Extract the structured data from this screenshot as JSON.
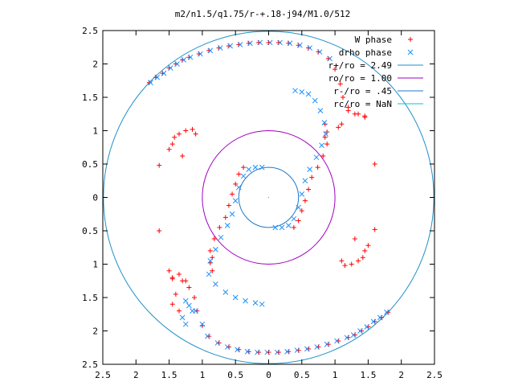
{
  "chart_data": {
    "type": "scatter",
    "title": "m2/n1.5/q1.75/r-+.18-j94/M1.0/512",
    "xlabel": "",
    "ylabel": "",
    "xlim": [
      -2.5,
      2.5
    ],
    "ylim": [
      -2.5,
      2.5
    ],
    "x_ticks": [
      -2.5,
      -2,
      -1.5,
      -1,
      -0.5,
      0,
      0.5,
      1,
      1.5,
      2,
      2.5
    ],
    "y_ticks": [
      2.5,
      2,
      1.5,
      1,
      0.5,
      0,
      -0.5,
      -1,
      -1.5,
      -2,
      -2.5
    ],
    "x_tick_labels": [
      "2.5",
      "2",
      "1.5",
      "1",
      "0.5",
      "0",
      "0.5",
      "1",
      "1.5",
      "2",
      "2.5"
    ],
    "y_tick_labels": [
      "2.5",
      "2",
      "1.5",
      "1",
      "0.5",
      "0",
      "0.5",
      "1",
      "1.5",
      "2",
      "2.5"
    ],
    "grid": false,
    "legend_position": "top-right",
    "legend": [
      {
        "label": "W phase",
        "kind": "marker",
        "symbol": "+",
        "color": "#ff0000"
      },
      {
        "label": "drho phase",
        "kind": "marker",
        "symbol": "x",
        "color": "#1e90ff"
      },
      {
        "label": "r+/ro = 2.49",
        "kind": "line",
        "color": "#1e90c8"
      },
      {
        "label": "ro/ro = 1.00",
        "kind": "line",
        "color": "#a000c0"
      },
      {
        "label": "r-/ro = .45",
        "kind": "line",
        "color": "#1e78c8"
      },
      {
        "label": "rc/ro = NaN",
        "kind": "line",
        "color": "#00c8c8"
      }
    ],
    "circles": [
      {
        "name": "r+/ro = 2.49",
        "r": 2.49,
        "color": "#1e90c8"
      },
      {
        "name": "ro/ro = 1.00",
        "r": 1.0,
        "color": "#a000c0"
      },
      {
        "name": "r-/ro = .45",
        "r": 0.45,
        "color": "#1e78c8"
      }
    ],
    "series": [
      {
        "name": "W phase",
        "color": "#ff0000",
        "marker": "+",
        "points": [
          [
            -1.8,
            1.72
          ],
          [
            -1.7,
            1.8
          ],
          [
            -1.6,
            1.86
          ],
          [
            -1.5,
            1.94
          ],
          [
            -1.4,
            2.0
          ],
          [
            -1.3,
            2.06
          ],
          [
            -1.2,
            2.1
          ],
          [
            -1.05,
            2.15
          ],
          [
            -0.9,
            2.2
          ],
          [
            -0.75,
            2.24
          ],
          [
            -0.6,
            2.27
          ],
          [
            -0.45,
            2.29
          ],
          [
            -0.3,
            2.31
          ],
          [
            -0.15,
            2.32
          ],
          [
            0.0,
            2.32
          ],
          [
            0.15,
            2.32
          ],
          [
            0.3,
            2.31
          ],
          [
            0.45,
            2.28
          ],
          [
            0.6,
            2.24
          ],
          [
            0.75,
            2.18
          ],
          [
            0.9,
            2.08
          ],
          [
            1.0,
            1.92
          ],
          [
            1.08,
            1.7
          ],
          [
            1.12,
            1.5
          ],
          [
            1.2,
            1.35
          ],
          [
            1.3,
            1.25
          ],
          [
            1.45,
            1.22
          ],
          [
            0.85,
            1.1
          ],
          [
            0.88,
            0.98
          ],
          [
            0.85,
            0.9
          ],
          [
            0.88,
            0.8
          ],
          [
            0.82,
            0.62
          ],
          [
            0.74,
            0.45
          ],
          [
            0.65,
            0.3
          ],
          [
            0.6,
            0.12
          ],
          [
            0.55,
            -0.05
          ],
          [
            0.5,
            -0.2
          ],
          [
            0.45,
            -0.35
          ],
          [
            0.38,
            -0.45
          ],
          [
            1.8,
            -1.72
          ],
          [
            1.7,
            -1.8
          ],
          [
            1.6,
            -1.86
          ],
          [
            1.5,
            -1.94
          ],
          [
            1.4,
            -2.0
          ],
          [
            1.3,
            -2.06
          ],
          [
            1.2,
            -2.1
          ],
          [
            1.05,
            -2.15
          ],
          [
            0.9,
            -2.2
          ],
          [
            0.75,
            -2.24
          ],
          [
            0.6,
            -2.27
          ],
          [
            0.45,
            -2.29
          ],
          [
            0.3,
            -2.31
          ],
          [
            0.15,
            -2.32
          ],
          [
            0.0,
            -2.32
          ],
          [
            -0.15,
            -2.32
          ],
          [
            -0.3,
            -2.31
          ],
          [
            -0.45,
            -2.28
          ],
          [
            -0.6,
            -2.24
          ],
          [
            -0.75,
            -2.18
          ],
          [
            -0.9,
            -2.08
          ],
          [
            -1.0,
            -1.92
          ],
          [
            -1.08,
            -1.7
          ],
          [
            -1.12,
            -1.5
          ],
          [
            -1.2,
            -1.35
          ],
          [
            -1.3,
            -1.25
          ],
          [
            -1.45,
            -1.22
          ],
          [
            -0.85,
            -1.1
          ],
          [
            -0.88,
            -0.98
          ],
          [
            -0.85,
            -0.9
          ],
          [
            -0.88,
            -0.8
          ],
          [
            -0.82,
            -0.62
          ],
          [
            -0.74,
            -0.45
          ],
          [
            -0.65,
            -0.3
          ],
          [
            -0.6,
            -0.12
          ],
          [
            -0.55,
            0.05
          ],
          [
            -0.5,
            0.2
          ],
          [
            -0.45,
            0.35
          ],
          [
            -0.38,
            0.45
          ],
          [
            -1.42,
            0.9
          ],
          [
            -1.35,
            0.95
          ],
          [
            -1.25,
            1.0
          ],
          [
            -1.15,
            1.02
          ],
          [
            -1.1,
            0.95
          ],
          [
            -1.45,
            0.8
          ],
          [
            -1.5,
            0.72
          ],
          [
            -1.3,
            0.62
          ],
          [
            -1.65,
            0.48
          ],
          [
            -1.65,
            -0.5
          ],
          [
            1.42,
            -0.9
          ],
          [
            1.35,
            -0.95
          ],
          [
            1.25,
            -1.0
          ],
          [
            1.15,
            -1.02
          ],
          [
            1.1,
            -0.95
          ],
          [
            1.45,
            -0.8
          ],
          [
            1.5,
            -0.72
          ],
          [
            1.3,
            -0.62
          ],
          [
            1.6,
            0.5
          ],
          [
            1.6,
            -0.48
          ],
          [
            -1.45,
            -1.2
          ],
          [
            -1.35,
            -1.15
          ],
          [
            -1.25,
            -1.25
          ],
          [
            -1.5,
            -1.1
          ],
          [
            -1.4,
            -1.45
          ],
          [
            -1.45,
            -1.6
          ],
          [
            -1.35,
            -1.7
          ],
          [
            1.2,
            1.3
          ],
          [
            1.35,
            1.25
          ],
          [
            1.45,
            1.2
          ],
          [
            1.05,
            1.05
          ],
          [
            1.1,
            1.1
          ]
        ]
      },
      {
        "name": "drho phase",
        "color": "#1e90ff",
        "marker": "x",
        "points": [
          [
            -1.78,
            1.72
          ],
          [
            -1.68,
            1.8
          ],
          [
            -1.58,
            1.86
          ],
          [
            -1.48,
            1.94
          ],
          [
            -1.38,
            2.0
          ],
          [
            -1.28,
            2.06
          ],
          [
            -1.18,
            2.1
          ],
          [
            -1.03,
            2.15
          ],
          [
            -0.88,
            2.2
          ],
          [
            -0.73,
            2.24
          ],
          [
            -0.58,
            2.27
          ],
          [
            -0.43,
            2.29
          ],
          [
            -0.28,
            2.31
          ],
          [
            -0.13,
            2.32
          ],
          [
            0.02,
            2.32
          ],
          [
            0.17,
            2.32
          ],
          [
            0.32,
            2.31
          ],
          [
            0.47,
            2.28
          ],
          [
            0.62,
            2.24
          ],
          [
            0.77,
            2.18
          ],
          [
            0.92,
            2.08
          ],
          [
            0.4,
            1.6
          ],
          [
            0.5,
            1.58
          ],
          [
            0.6,
            1.55
          ],
          [
            0.7,
            1.45
          ],
          [
            0.78,
            1.3
          ],
          [
            0.84,
            1.12
          ],
          [
            0.86,
            0.95
          ],
          [
            0.8,
            0.78
          ],
          [
            0.72,
            0.6
          ],
          [
            0.62,
            0.42
          ],
          [
            0.55,
            0.25
          ],
          [
            0.5,
            0.05
          ],
          [
            0.45,
            -0.15
          ],
          [
            0.38,
            -0.32
          ],
          [
            0.3,
            -0.42
          ],
          [
            0.2,
            -0.45
          ],
          [
            0.1,
            -0.45
          ],
          [
            1.78,
            -1.72
          ],
          [
            1.68,
            -1.8
          ],
          [
            1.58,
            -1.86
          ],
          [
            1.48,
            -1.94
          ],
          [
            1.38,
            -2.0
          ],
          [
            1.28,
            -2.06
          ],
          [
            1.18,
            -2.1
          ],
          [
            1.03,
            -2.15
          ],
          [
            0.88,
            -2.2
          ],
          [
            0.73,
            -2.24
          ],
          [
            0.58,
            -2.27
          ],
          [
            0.43,
            -2.29
          ],
          [
            0.28,
            -2.31
          ],
          [
            0.13,
            -2.32
          ],
          [
            -0.02,
            -2.32
          ],
          [
            -0.17,
            -2.32
          ],
          [
            -0.32,
            -2.31
          ],
          [
            -0.47,
            -2.28
          ],
          [
            -0.62,
            -2.24
          ],
          [
            -0.77,
            -2.18
          ],
          [
            -0.92,
            -2.08
          ],
          [
            -1.0,
            -1.9
          ],
          [
            -1.1,
            -1.7
          ],
          [
            -0.1,
            -1.6
          ],
          [
            -0.2,
            -1.58
          ],
          [
            -0.35,
            -1.55
          ],
          [
            -0.5,
            -1.5
          ],
          [
            -0.65,
            -1.42
          ],
          [
            -0.8,
            -1.3
          ],
          [
            -0.9,
            -1.15
          ],
          [
            -0.88,
            -0.95
          ],
          [
            -0.8,
            -0.78
          ],
          [
            -0.72,
            -0.6
          ],
          [
            -0.62,
            -0.42
          ],
          [
            -0.55,
            -0.25
          ],
          [
            -0.5,
            -0.05
          ],
          [
            -0.45,
            0.15
          ],
          [
            -0.38,
            0.32
          ],
          [
            -0.3,
            0.42
          ],
          [
            -0.2,
            0.45
          ],
          [
            -0.1,
            0.45
          ],
          [
            -1.25,
            -1.55
          ],
          [
            -1.2,
            -1.62
          ],
          [
            -1.15,
            -1.7
          ],
          [
            -1.3,
            -1.8
          ],
          [
            -1.25,
            -1.9
          ]
        ]
      }
    ]
  }
}
